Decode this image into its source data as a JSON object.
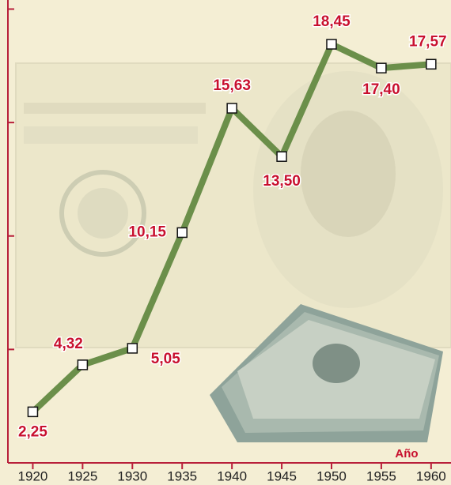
{
  "chart_data": {
    "type": "line",
    "x": [
      1920,
      1925,
      1930,
      1935,
      1940,
      1945,
      1950,
      1955,
      1960
    ],
    "series": [
      {
        "color": "#6b8f4a",
        "values": [
          2.25,
          4.32,
          5.05,
          10.15,
          15.63,
          13.5,
          18.45,
          17.4,
          17.57
        ],
        "value_labels": [
          "2,25",
          "4,32",
          "5,05",
          "10,15",
          "15,63",
          "13,50",
          "18,45",
          "17,40",
          "17,57"
        ]
      }
    ],
    "x_label": "Año",
    "xlim": [
      1917.5,
      1962
    ],
    "xticks": [
      1920,
      1925,
      1930,
      1935,
      1940,
      1945,
      1950,
      1955,
      1960
    ],
    "ylim": [
      0,
      20.4
    ],
    "yticks": [
      5,
      10,
      15,
      20
    ],
    "axis_color": "#b8203a",
    "label_color": "#c8102e",
    "grid": false
  }
}
